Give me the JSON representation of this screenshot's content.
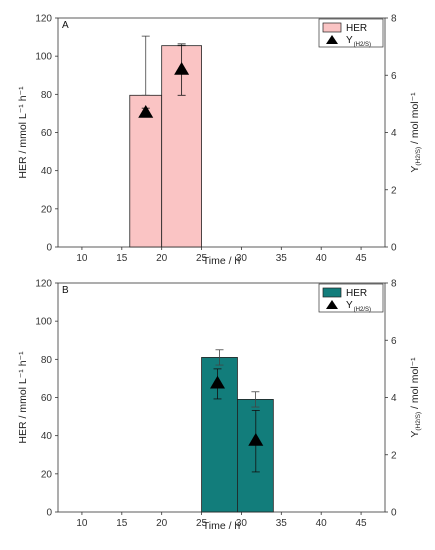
{
  "chart_data": [
    {
      "type": "bar",
      "panel_label": "A",
      "title": "",
      "xlabel": "Time / h",
      "ylabel_left": "HER / mmol L⁻¹ h⁻¹",
      "ylabel_right_base": "Y",
      "ylabel_right_sub": "(H2/S)",
      "ylabel_right_suffix": " / mol mol⁻¹",
      "xlim": [
        7,
        48
      ],
      "ylim_left": [
        0,
        120
      ],
      "ylim_right": [
        0,
        8
      ],
      "x_ticks": [
        "10",
        "15",
        "20",
        "25",
        "30",
        "35",
        "40",
        "45"
      ],
      "y_left_ticks": [
        "0",
        "20",
        "40",
        "60",
        "80",
        "100",
        "120"
      ],
      "y_right_ticks": [
        "0",
        "2",
        "4",
        "6",
        "8"
      ],
      "bar_color": "#fac4c4",
      "series": [
        {
          "name": "HER",
          "kind": "bar",
          "bars": [
            {
              "x_start": 16,
              "x_end": 20,
              "value": 79.5,
              "err_low": 79.5,
              "err_high": 110.5
            },
            {
              "x_start": 20,
              "x_end": 25,
              "value": 105.5,
              "err_low": 105.5,
              "err_high": 106.5
            }
          ]
        },
        {
          "name": "Y(H2/S)",
          "legend_base": "Y",
          "legend_sub": "(H2/S)",
          "kind": "scatter",
          "marker": "triangle",
          "points": [
            {
              "x": 18,
              "y": 4.7,
              "err_low": 4.55,
              "err_high": 4.85
            },
            {
              "x": 22.5,
              "y": 6.2,
              "err_low": 5.3,
              "err_high": 7.05
            }
          ]
        }
      ],
      "legend_position": "top-right"
    },
    {
      "type": "bar",
      "panel_label": "B",
      "title": "",
      "xlabel": "Time / h",
      "ylabel_left": "HER / mmol L⁻¹ h⁻¹",
      "ylabel_right_base": "Y",
      "ylabel_right_sub": "(H2/S)",
      "ylabel_right_suffix": " / mol mol⁻¹",
      "xlim": [
        7,
        48
      ],
      "ylim_left": [
        0,
        120
      ],
      "ylim_right": [
        0,
        8
      ],
      "x_ticks": [
        "10",
        "15",
        "20",
        "25",
        "30",
        "35",
        "40",
        "45"
      ],
      "y_left_ticks": [
        "0",
        "20",
        "40",
        "60",
        "80",
        "100",
        "120"
      ],
      "y_right_ticks": [
        "0",
        "2",
        "4",
        "6",
        "8"
      ],
      "bar_color": "#127d7b",
      "series": [
        {
          "name": "HER",
          "kind": "bar",
          "bars": [
            {
              "x_start": 25,
              "x_end": 29.5,
              "value": 81,
              "err_low": 77,
              "err_high": 85
            },
            {
              "x_start": 29.5,
              "x_end": 34,
              "value": 59,
              "err_low": 55,
              "err_high": 63
            }
          ]
        },
        {
          "name": "Y(H2S)",
          "legend_base": "Y",
          "legend_sub": "(H2/S)",
          "kind": "scatter",
          "marker": "triangle",
          "points": [
            {
              "x": 27,
              "y": 4.5,
              "err_low": 3.95,
              "err_high": 5.0
            },
            {
              "x": 31.8,
              "y": 2.5,
              "err_low": 1.4,
              "err_high": 3.55
            }
          ]
        }
      ],
      "legend_position": "top-right"
    }
  ]
}
